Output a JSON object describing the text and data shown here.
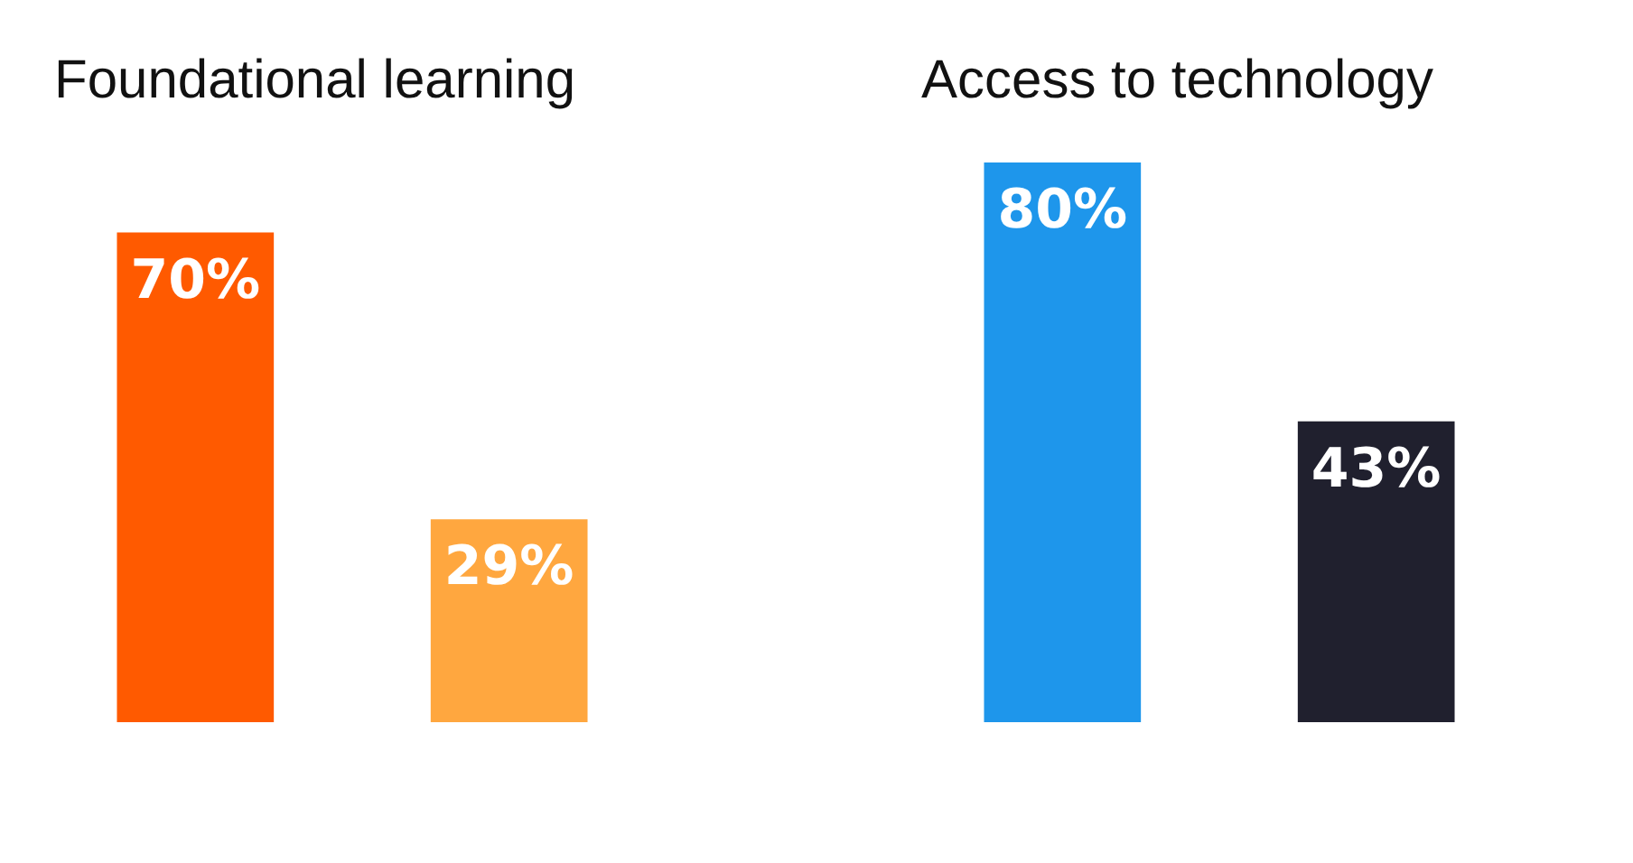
{
  "chart_data": [
    {
      "type": "bar",
      "title": "Foundational learning",
      "categories": [
        null,
        null
      ],
      "values": [
        70,
        29
      ],
      "colors": [
        "#ff5a00",
        "#ffa73f"
      ],
      "value_labels": [
        "70%",
        "29%"
      ],
      "tick_labels": false
    },
    {
      "type": "bar",
      "title": "Access to technology",
      "categories": [
        null,
        null
      ],
      "values": [
        80,
        43
      ],
      "colors": [
        "#1e96eb",
        "#20202e"
      ],
      "value_labels": [
        "80%",
        "43%"
      ],
      "tick_labels": false
    }
  ]
}
